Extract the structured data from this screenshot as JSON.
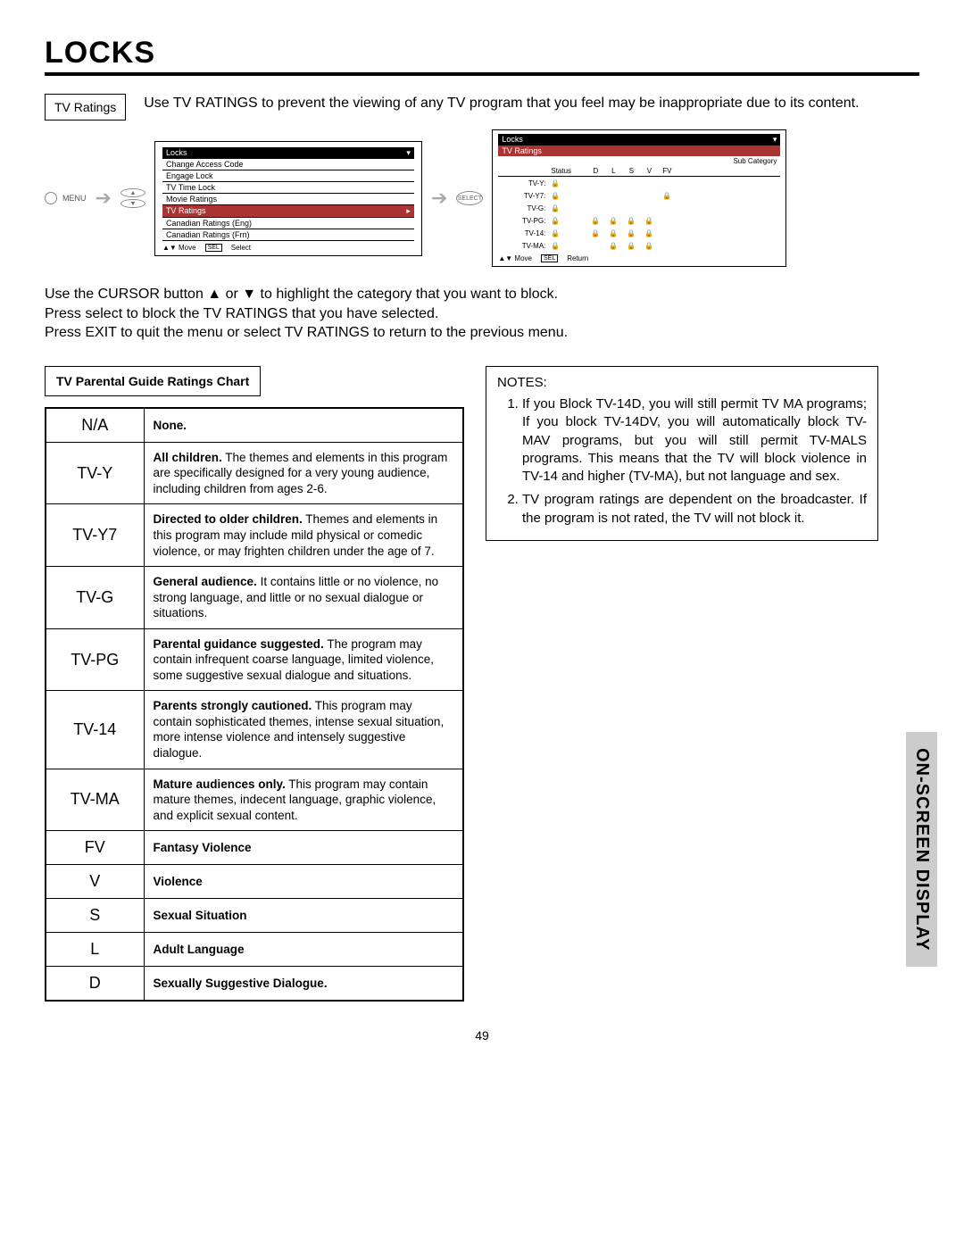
{
  "title": "LOCKS",
  "topbox_label": "TV Ratings",
  "intro_text": "Use TV RATINGS to prevent the viewing of any TV program that you feel may be inappropriate due to its content.",
  "menu_label": "MENU",
  "select_label": "SELECT",
  "osd1": {
    "header": "Locks",
    "items": [
      {
        "label": "Change Access Code",
        "hl": false,
        "arrow": false
      },
      {
        "label": "Engage Lock",
        "hl": false,
        "arrow": false
      },
      {
        "label": "TV Time Lock",
        "hl": false,
        "arrow": false
      },
      {
        "label": "Movie Ratings",
        "hl": false,
        "arrow": false
      },
      {
        "label": "TV Ratings",
        "hl": true,
        "arrow": true
      },
      {
        "label": "Canadian Ratings (Eng)",
        "hl": false,
        "arrow": false
      },
      {
        "label": "Canadian Ratings (Frn)",
        "hl": false,
        "arrow": false
      }
    ],
    "footer_move": "Move",
    "footer_sel": "SEL",
    "footer_select": "Select"
  },
  "osd2": {
    "header": "Locks",
    "sub_header": "TV Ratings",
    "subcat_label": "Sub Category",
    "cols": [
      "Status",
      "D",
      "L",
      "S",
      "V",
      "FV"
    ],
    "rows": [
      {
        "label": "TV-Y:",
        "locks": [
          true,
          false,
          false,
          false,
          false,
          false
        ]
      },
      {
        "label": "TV-Y7:",
        "locks": [
          true,
          false,
          false,
          false,
          false,
          true
        ]
      },
      {
        "label": "TV-G:",
        "locks": [
          true,
          false,
          false,
          false,
          false,
          false
        ]
      },
      {
        "label": "TV-PG:",
        "locks": [
          true,
          true,
          true,
          true,
          true,
          false
        ]
      },
      {
        "label": "TV-14:",
        "locks": [
          true,
          true,
          true,
          true,
          true,
          false
        ]
      },
      {
        "label": "TV-MA:",
        "locks": [
          true,
          false,
          true,
          true,
          true,
          false
        ]
      }
    ],
    "footer_move": "Move",
    "footer_sel": "SEL",
    "footer_return": "Return"
  },
  "instructions_line1": "Use the CURSOR button ▲ or ▼ to highlight the category that you want to block.",
  "instructions_line2": "Press select to block the TV RATINGS that you have selected.",
  "instructions_line3": "Press EXIT to quit the menu or select TV RATINGS to return to the previous menu.",
  "chart_title": "TV Parental Guide Ratings Chart",
  "ratings_rows": [
    {
      "code": "N/A",
      "desc_bold": "None.",
      "desc": ""
    },
    {
      "code": "TV-Y",
      "desc_bold": "All children.",
      "desc": " The themes and elements in this program are specifically designed for a very young audience, including children from ages 2-6."
    },
    {
      "code": "TV-Y7",
      "desc_bold": "Directed to older children.",
      "desc": " Themes and elements in this program may include mild physical or comedic violence, or may frighten children under the age of 7."
    },
    {
      "code": "TV-G",
      "desc_bold": "General audience.",
      "desc": " It contains little or no violence, no strong language, and little or no sexual dialogue or situations."
    },
    {
      "code": "TV-PG",
      "desc_bold": "Parental guidance suggested.",
      "desc": " The program may contain infrequent coarse language, limited violence, some suggestive sexual dialogue and situations."
    },
    {
      "code": "TV-14",
      "desc_bold": "Parents strongly cautioned.",
      "desc": " This program may contain sophisticated themes, intense sexual situation, more intense violence and intensely suggestive dialogue."
    },
    {
      "code": "TV-MA",
      "desc_bold": "Mature audiences only.",
      "desc": " This program may contain mature themes, indecent language, graphic violence, and explicit sexual content."
    },
    {
      "code": "FV",
      "desc_bold": "Fantasy Violence",
      "desc": ""
    },
    {
      "code": "V",
      "desc_bold": "Violence",
      "desc": ""
    },
    {
      "code": "S",
      "desc_bold": "Sexual Situation",
      "desc": ""
    },
    {
      "code": "L",
      "desc_bold": "Adult Language",
      "desc": ""
    },
    {
      "code": "D",
      "desc_bold": "Sexually Suggestive Dialogue.",
      "desc": ""
    }
  ],
  "notes_title": "NOTES:",
  "notes": [
    "If you Block TV-14D, you will still permit TV MA programs; If you block TV-14DV, you will automatically block TV-MAV programs, but you will still permit TV-MALS programs. This means that the TV will block violence in TV-14 and higher (TV-MA), but not language and sex.",
    "TV program ratings are dependent on the broadcaster.  If the program is not rated, the TV will not block it."
  ],
  "side_tab": "ON-SCREEN DISPLAY",
  "page_number": "49",
  "lock_glyph": "🔒",
  "colors": {
    "highlight": "#a33",
    "tab_bg": "#cccccc"
  }
}
